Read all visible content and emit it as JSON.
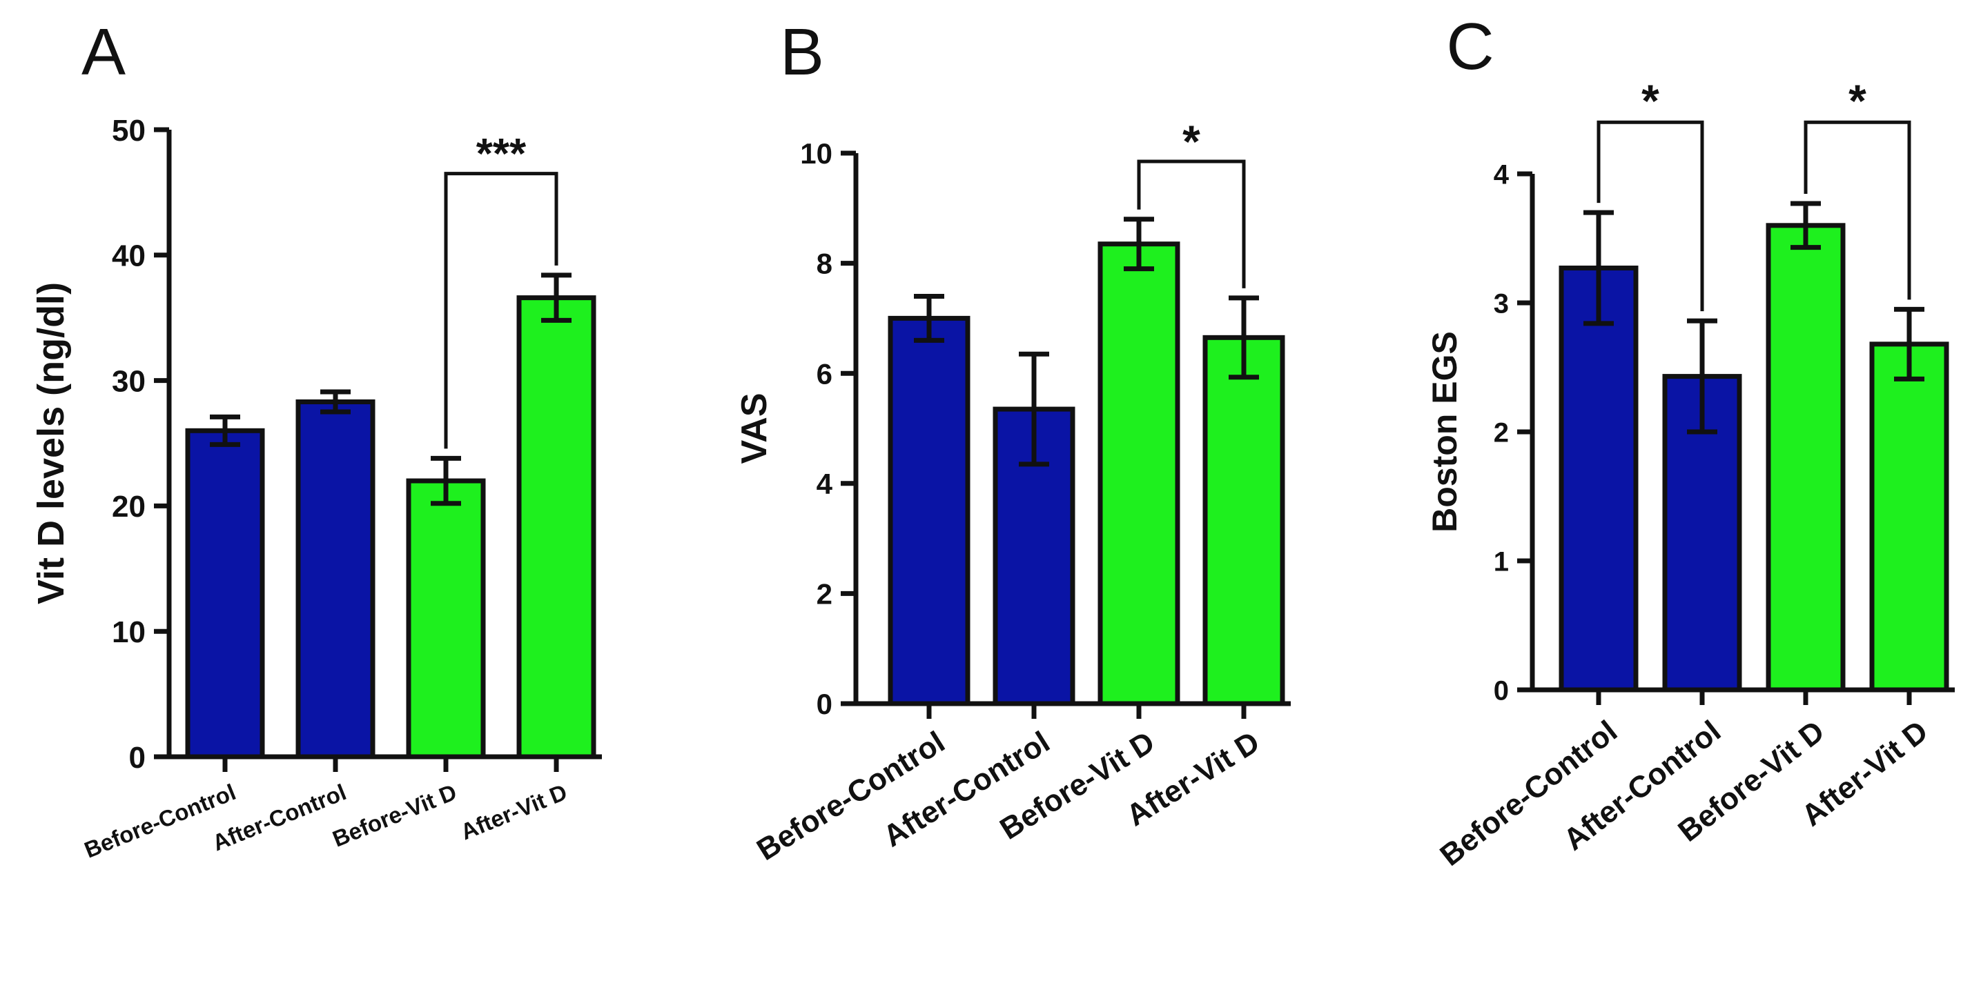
{
  "figure": {
    "background": "#ffffff",
    "colors": {
      "control": "#0a14a5",
      "vitd": "#1ef01e",
      "ink": "#111111"
    }
  },
  "chart_data": [
    {
      "type": "bar",
      "panel_label": "A",
      "title": "",
      "xlabel": "",
      "ylabel": "Vit D levels (ng/dl)",
      "categories": [
        "Before-Control",
        "After-Control",
        "Before-Vit D",
        "After-Vit D"
      ],
      "series": [
        {
          "name": "Vit D levels (ng/dl)",
          "values": [
            26,
            28.3,
            22,
            36.6
          ],
          "errors": [
            1.1,
            0.8,
            1.8,
            1.8
          ]
        }
      ],
      "bar_colors": [
        "control",
        "control",
        "vitd",
        "vitd"
      ],
      "ylim": [
        0,
        50
      ],
      "yticks": [
        0,
        10,
        20,
        30,
        40,
        50
      ],
      "grid": false,
      "legend": "none",
      "significance": [
        {
          "from": 2,
          "to": 3,
          "label": "***",
          "level": 46.5
        }
      ]
    },
    {
      "type": "bar",
      "panel_label": "B",
      "title": "",
      "xlabel": "",
      "ylabel": "VAS",
      "categories": [
        "Before-Control",
        "After-Control",
        "Before-Vit D",
        "After-Vit D"
      ],
      "series": [
        {
          "name": "VAS",
          "values": [
            7,
            5.35,
            8.35,
            6.65
          ],
          "errors": [
            0.4,
            1.0,
            0.45,
            0.72
          ]
        }
      ],
      "bar_colors": [
        "control",
        "control",
        "vitd",
        "vitd"
      ],
      "ylim": [
        0,
        10
      ],
      "yticks": [
        0,
        2,
        4,
        6,
        8,
        10
      ],
      "grid": false,
      "legend": "none",
      "significance": [
        {
          "from": 2,
          "to": 3,
          "label": "*",
          "level": 9.85
        }
      ]
    },
    {
      "type": "bar",
      "panel_label": "C",
      "title": "",
      "xlabel": "",
      "ylabel": "Boston EGS",
      "categories": [
        "Before-Control",
        "After-Control",
        "Before-Vit D",
        "After-Vit D"
      ],
      "series": [
        {
          "name": "Boston EGS",
          "values": [
            3.27,
            2.43,
            3.6,
            2.68
          ],
          "errors": [
            0.43,
            0.43,
            0.17,
            0.27
          ]
        }
      ],
      "bar_colors": [
        "control",
        "control",
        "vitd",
        "vitd"
      ],
      "ylim": [
        0,
        4
      ],
      "yticks": [
        0,
        1,
        2,
        3,
        4
      ],
      "grid": false,
      "legend": "none",
      "significance": [
        {
          "from": 0,
          "to": 1,
          "label": "*",
          "level": 4.4
        },
        {
          "from": 2,
          "to": 3,
          "label": "*",
          "level": 4.4
        }
      ]
    }
  ]
}
